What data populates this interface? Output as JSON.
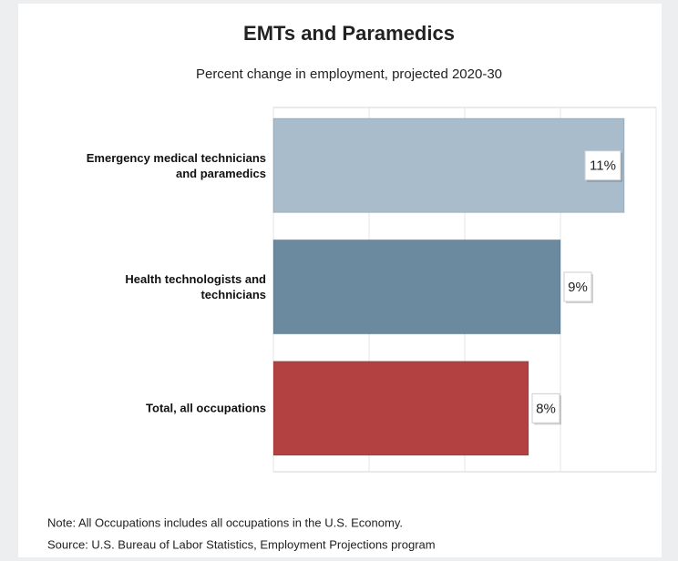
{
  "chart_data": {
    "type": "hbar",
    "title": "EMTs and Paramedics",
    "subtitle": "Percent change in employment, projected 2020-30",
    "categories": [
      "Emergency medical technicians and paramedics",
      "Health technologists and technicians",
      "Total, all occupations"
    ],
    "values": [
      11,
      9,
      8
    ],
    "value_labels": [
      "11%",
      "9%",
      "8%"
    ],
    "colors": [
      "#a9bccb",
      "#6b8aa0",
      "#b34141"
    ],
    "xlim": [
      0,
      12
    ],
    "xticks": [
      0,
      3,
      6,
      9,
      12
    ],
    "grid": true,
    "note": "Note: All Occupations includes all occupations in the U.S. Economy.",
    "source": "Source: U.S. Bureau of Labor Statistics, Employment Projections program"
  }
}
